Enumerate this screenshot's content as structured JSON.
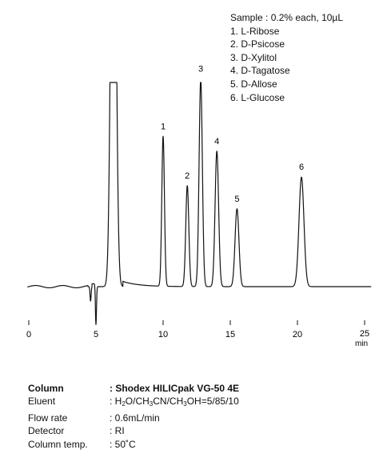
{
  "chart_data": {
    "type": "line",
    "x_label": "min",
    "x_ticks": [
      "0",
      "5",
      "10",
      "15",
      "20",
      "25"
    ],
    "xlim": [
      0,
      25
    ],
    "peaks": [
      {
        "label": "1",
        "rt": 10.0,
        "height": 0.52
      },
      {
        "label": "2",
        "rt": 11.8,
        "height": 0.35
      },
      {
        "label": "3",
        "rt": 12.8,
        "height": 0.72
      },
      {
        "label": "4",
        "rt": 14.0,
        "height": 0.47
      },
      {
        "label": "5",
        "rt": 15.5,
        "height": 0.27
      },
      {
        "label": "6",
        "rt": 20.3,
        "height": 0.38
      }
    ],
    "solvent_peak": {
      "rt": 6.3,
      "clipped": true
    },
    "injection_dips": [
      {
        "rt": 4.6,
        "depth": 0.05
      },
      {
        "rt": 5.0,
        "depth": 0.13
      }
    ]
  },
  "legend": {
    "sample": "Sample : 0.2% each, 10µL",
    "compounds": [
      "1. L-Ribose",
      "2. D-Psicose",
      "3. D-Xylitol",
      "4. D-Tagatose",
      "5. D-Allose",
      "6. L-Glucose"
    ]
  },
  "conditions": {
    "column_label": "Column",
    "column_value": ": Shodex HILICpak VG-50 4E",
    "eluent_label": "Eluent",
    "eluent_parts": [
      ": H",
      "2",
      "O/CH",
      "3",
      "CN/CH",
      "3",
      "OH=5/85/10"
    ],
    "flow_label": "Flow rate",
    "flow_value": ": 0.6mL/min",
    "detector_label": "Detector",
    "detector_value": ": RI",
    "temp_label": "Column temp.",
    "temp_value": ": 50˚C"
  }
}
